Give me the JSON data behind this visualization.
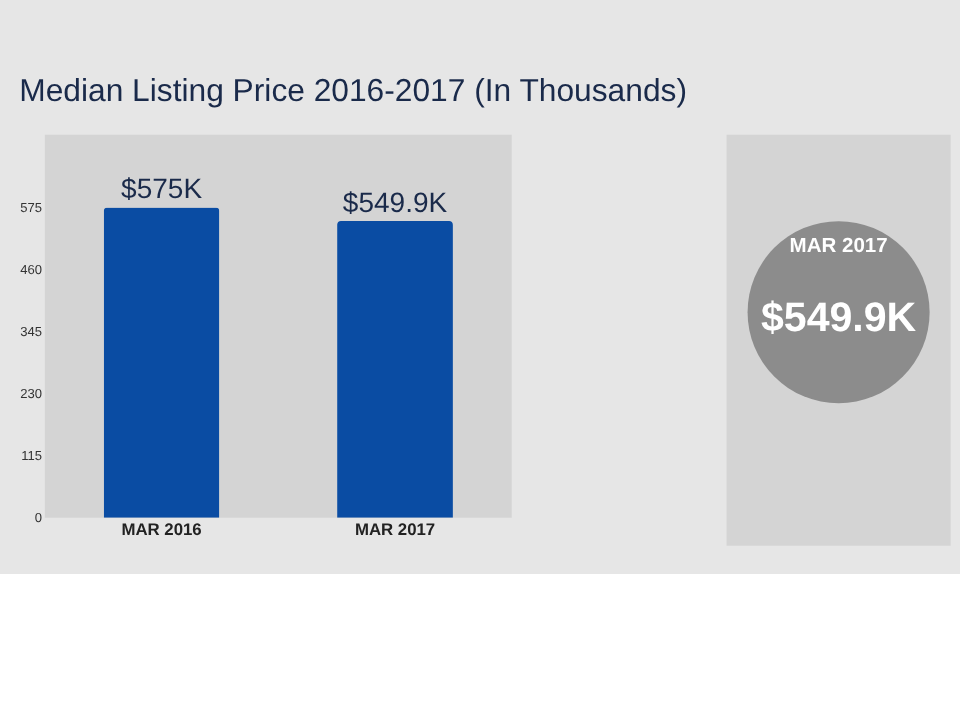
{
  "chart_data": {
    "type": "bar",
    "title": "Median Listing Price 2016-2017 (In Thousands)",
    "categories": [
      "MAR 2016",
      "MAR 2017"
    ],
    "values": [
      575,
      549.9
    ],
    "value_labels": [
      "$575K",
      "$549.9K"
    ],
    "color": "#0a4ca3",
    "ylim": [
      0,
      710
    ],
    "yticks": [
      0,
      115,
      230,
      345,
      460,
      575
    ],
    "grid": false,
    "annotations": [
      "MAR 2017",
      "$549.9K"
    ]
  }
}
